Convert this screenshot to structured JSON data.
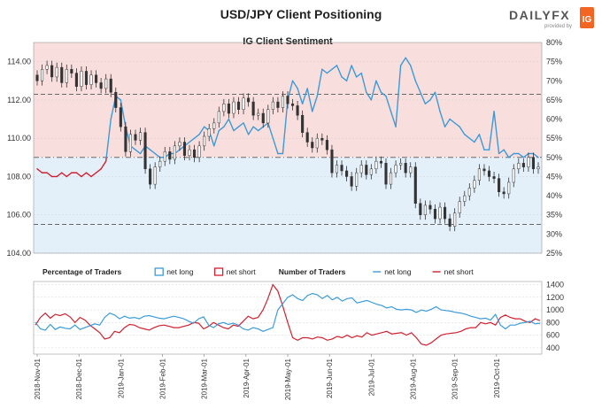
{
  "header": {
    "title": "USD/JPY Client Positioning",
    "logo_text": "DAILYFX",
    "logo_sub": "provided by",
    "logo_badge": "IG"
  },
  "colors": {
    "upper_bg": "#f9dede",
    "lower_bg": "#e3f0fa",
    "net_long": "#3a9bd8",
    "net_short": "#d0202f",
    "candle": "#333333",
    "ref_line": "#555555",
    "grid": "#d0d0d0",
    "logo_orange": "#f26522"
  },
  "chart_data": [
    {
      "type": "line",
      "title": "IG Client Sentiment",
      "y_left_ticks": [
        "104.00",
        "106.00",
        "108.00",
        "110.00",
        "112.00",
        "114.00"
      ],
      "ylim_left": [
        104,
        115
      ],
      "y_right_ticks": [
        "25%",
        "30%",
        "35%",
        "40%",
        "45%",
        "50%",
        "55%",
        "60%",
        "65%",
        "70%",
        "75%",
        "80%"
      ],
      "ylim_right": [
        25,
        80
      ],
      "reference_lines": [
        {
          "axis": "right",
          "value": 50,
          "style": "dashdot"
        },
        {
          "axis": "left",
          "value": 112.3,
          "style": "dashed"
        },
        {
          "axis": "left",
          "value": 105.5,
          "style": "dashed"
        }
      ],
      "candles_close": [
        113.0,
        113.6,
        113.8,
        113.2,
        113.7,
        112.9,
        113.6,
        113.4,
        112.7,
        113.5,
        112.8,
        113.3,
        112.9,
        112.6,
        113.1,
        112.4,
        111.6,
        110.6,
        109.3,
        110.2,
        109.9,
        110.3,
        108.4,
        107.6,
        108.5,
        108.8,
        109.3,
        108.9,
        109.6,
        109.8,
        109.1,
        109.4,
        109.0,
        109.6,
        110.1,
        110.5,
        110.8,
        111.4,
        111.8,
        111.3,
        111.9,
        111.5,
        112.1,
        111.9,
        111.2,
        111.3,
        110.8,
        111.5,
        111.9,
        111.6,
        112.2,
        111.8,
        111.7,
        111.2,
        110.3,
        109.8,
        109.5,
        110.0,
        109.9,
        109.4,
        108.2,
        108.6,
        108.3,
        108.0,
        107.5,
        108.2,
        108.6,
        108.1,
        108.4,
        108.8,
        108.7,
        107.6,
        108.2,
        108.6,
        108.7,
        108.2,
        108.5,
        106.6,
        106.0,
        106.5,
        106.3,
        105.8,
        106.4,
        105.8,
        105.4,
        106.1,
        106.7,
        107.0,
        107.4,
        107.8,
        108.4,
        108.3,
        108.0,
        107.9,
        107.2,
        107.1,
        107.7,
        108.4,
        108.7,
        108.5,
        109.0,
        108.4,
        108.5
      ],
      "net_long_pct": [
        47,
        46,
        46,
        45,
        45,
        46,
        45,
        46,
        46,
        45,
        46,
        45,
        46,
        47,
        49,
        60,
        66,
        65,
        58,
        53,
        52,
        51,
        53,
        52,
        51,
        50,
        50,
        51,
        51,
        52,
        53,
        54,
        55,
        56,
        58,
        57,
        53,
        57,
        58,
        60,
        57,
        58,
        59,
        56,
        58,
        57,
        58,
        59,
        55,
        51,
        51,
        65,
        70,
        68,
        64,
        68,
        62,
        66,
        73,
        72,
        73,
        74,
        71,
        70,
        74,
        71,
        72,
        67,
        65,
        70,
        67,
        66,
        62,
        58,
        74,
        76,
        74,
        70,
        67,
        64,
        65,
        67,
        62,
        58,
        60,
        59,
        58,
        56,
        55,
        54,
        56,
        52,
        52,
        62,
        51,
        52,
        50,
        51,
        51,
        50,
        51,
        51,
        50
      ]
    },
    {
      "type": "line",
      "title": "",
      "legend": [
        {
          "label": "Percentage of Traders",
          "kind": "heading"
        },
        {
          "label": "net long",
          "kind": "box",
          "color": "#3a9bd8"
        },
        {
          "label": "net short",
          "kind": "box",
          "color": "#d0202f"
        },
        {
          "label": "Number of Traders",
          "kind": "heading"
        },
        {
          "label": "net long",
          "kind": "line",
          "color": "#3a9bd8"
        },
        {
          "label": "net short",
          "kind": "line",
          "color": "#d0202f"
        }
      ],
      "y_right_ticks": [
        "400",
        "600",
        "800",
        "1000",
        "1200",
        "1400"
      ],
      "ylim": [
        300,
        1450
      ],
      "x_ticks": [
        "2018-Nov-01",
        "2018-Dec-01",
        "2019-Jan-01",
        "2019-Feb-01",
        "2019-Mar-01",
        "2019-Apr-01",
        "2019-May-01",
        "2019-Jun-01",
        "2019-Jul-01",
        "2019-Aug-01",
        "2019-Sep-01",
        "2019-Oct-01"
      ],
      "net_long_count": [
        800,
        700,
        680,
        770,
        690,
        730,
        710,
        700,
        760,
        690,
        720,
        750,
        780,
        760,
        880,
        950,
        920,
        860,
        900,
        870,
        880,
        860,
        900,
        910,
        890,
        870,
        860,
        880,
        900,
        880,
        860,
        820,
        790,
        860,
        890,
        760,
        720,
        780,
        800,
        770,
        790,
        760,
        700,
        680,
        720,
        700,
        660,
        690,
        720,
        1000,
        1100,
        1200,
        1240,
        1180,
        1150,
        1230,
        1260,
        1240,
        1180,
        1230,
        1160,
        1200,
        1140,
        1180,
        1190,
        1110,
        1130,
        1150,
        1120,
        1090,
        1070,
        1030,
        1050,
        1010,
        1000,
        1010,
        1000,
        960,
        1000,
        980,
        1010,
        1050,
        1000,
        990,
        980,
        960,
        950,
        930,
        900,
        880,
        860,
        870,
        840,
        930,
        760,
        700,
        760,
        760,
        790,
        800,
        820,
        780,
        790
      ],
      "net_short_count": [
        760,
        880,
        950,
        870,
        930,
        910,
        940,
        890,
        800,
        880,
        840,
        760,
        700,
        640,
        540,
        560,
        660,
        640,
        720,
        770,
        760,
        720,
        700,
        680,
        720,
        750,
        760,
        740,
        720,
        720,
        740,
        760,
        800,
        790,
        700,
        740,
        800,
        760,
        720,
        700,
        760,
        740,
        820,
        900,
        860,
        880,
        1000,
        1180,
        1400,
        1300,
        1060,
        800,
        560,
        520,
        560,
        560,
        540,
        570,
        560,
        520,
        540,
        580,
        560,
        600,
        560,
        590,
        570,
        640,
        600,
        620,
        640,
        660,
        620,
        630,
        640,
        600,
        640,
        560,
        460,
        440,
        480,
        540,
        600,
        620,
        630,
        640,
        660,
        700,
        720,
        720,
        800,
        780,
        800,
        760,
        880,
        920,
        880,
        860,
        860,
        820,
        800,
        860,
        830
      ]
    }
  ]
}
